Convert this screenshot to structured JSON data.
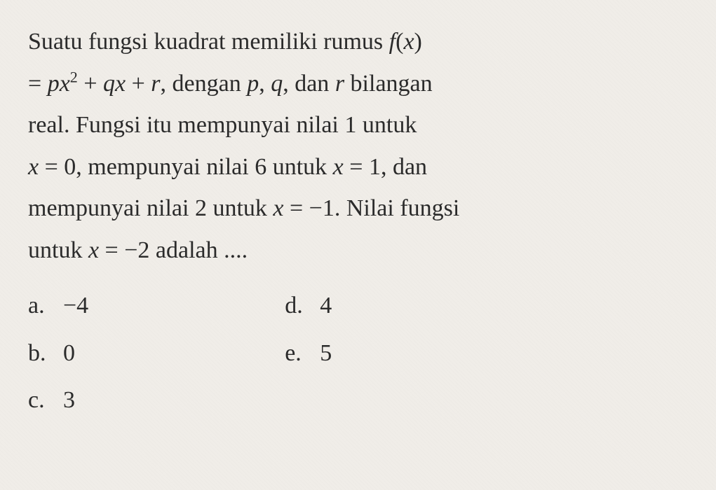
{
  "question": {
    "line1_part1": "Suatu fungsi kuadrat memiliki rumus ",
    "line1_fx": "f",
    "line1_fx_arg": "(x)",
    "line2_part1": "= ",
    "line2_px": "px",
    "line2_exp": "2",
    "line2_part2": " + ",
    "line2_qx": "qx",
    "line2_part3": " + ",
    "line2_r": "r",
    "line2_part4": ", dengan ",
    "line2_p": "p",
    "line2_part5": ", ",
    "line2_q": "q",
    "line2_part6": ", dan ",
    "line2_r2": "r",
    "line2_part7": " bilangan",
    "line3": "real. Fungsi itu mempunyai nilai 1 untuk",
    "line4_part1": "",
    "line4_x": "x",
    "line4_part2": " = 0, mempunyai nilai 6 untuk ",
    "line4_x2": "x",
    "line4_part3": " = 1, dan",
    "line5_part1": "mempunyai nilai 2 untuk ",
    "line5_x": "x",
    "line5_part2": " = −1. Nilai fungsi",
    "line6_part1": "untuk ",
    "line6_x": "x",
    "line6_part2": " = −2 adalah ...."
  },
  "options": {
    "a": {
      "label": "a.",
      "value": "−4"
    },
    "b": {
      "label": "b.",
      "value": "0"
    },
    "c": {
      "label": "c.",
      "value": "3"
    },
    "d": {
      "label": "d.",
      "value": "4"
    },
    "e": {
      "label": "e.",
      "value": "5"
    }
  },
  "style": {
    "background_color": "#f0ede8",
    "text_color": "#2a2a2a",
    "font_size": 34,
    "line_height": 1.75,
    "font_family": "Georgia, Times New Roman, serif"
  }
}
